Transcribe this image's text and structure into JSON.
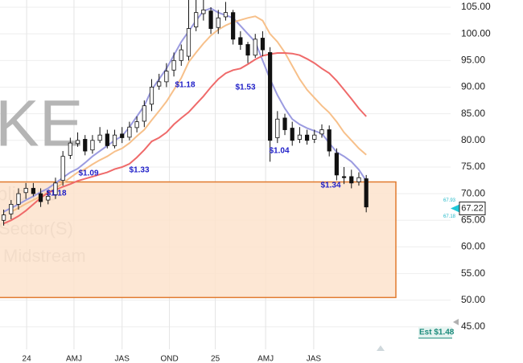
{
  "chart_data": {
    "type": "candlestick",
    "watermark": [
      "KE",
      "blic Inc",
      "Sector(S)",
      "Midstream"
    ],
    "open": [
      65,
      66.2,
      68,
      70.2,
      71,
      70,
      68.8,
      69.8,
      72.5,
      77.2,
      79.4,
      80.2,
      78.2,
      80,
      81.2,
      79,
      81.2,
      80.6,
      82.4,
      83.6,
      86.8,
      90.2,
      91,
      93.2,
      95,
      95.8,
      101.3,
      103.8,
      104.3,
      101.2,
      103.2,
      104,
      99.3,
      98,
      96,
      99.2,
      96.5,
      80.5,
      84.2,
      82.3,
      80.2,
      81,
      80.2,
      81.2,
      82,
      77.6,
      73.2,
      73.2,
      72.2,
      72.8
    ],
    "high": [
      67,
      68.8,
      71,
      72,
      72,
      71,
      70.5,
      73,
      78,
      80.5,
      81.5,
      81,
      81,
      82.5,
      82,
      82,
      82.5,
      83.5,
      84.5,
      87.5,
      91.5,
      92.5,
      94.5,
      96.5,
      98,
      108,
      106.5,
      106.5,
      105,
      104.5,
      106,
      104.5,
      100.5,
      98.5,
      100,
      100.5,
      97.5,
      85.5,
      85,
      83.5,
      82.5,
      82,
      82,
      83,
      82.8,
      78.5,
      75,
      74.5,
      74,
      73.5
    ],
    "low": [
      64,
      65.2,
      67,
      69,
      69.5,
      67.5,
      68,
      69,
      71.5,
      76.5,
      78.8,
      77.2,
      77.5,
      79.5,
      78.5,
      78.5,
      79.5,
      80,
      81.5,
      82.5,
      85.5,
      89.5,
      90,
      92,
      94,
      95,
      100.5,
      102.5,
      100,
      100,
      102.5,
      98,
      97,
      94.5,
      95.5,
      95.8,
      76,
      79.5,
      81,
      79,
      79.5,
      79.2,
      79.5,
      80.5,
      77,
      72.5,
      71.8,
      71,
      71.5,
      66.5
    ],
    "close": [
      66,
      68,
      70,
      71,
      70,
      68.5,
      69.5,
      72,
      77,
      79.5,
      80,
      78,
      80,
      81,
      79,
      81,
      80.5,
      82.5,
      83.5,
      86.5,
      90,
      91,
      93,
      95,
      97,
      101,
      104,
      104.5,
      101,
      103,
      104,
      99,
      98,
      96,
      99,
      97,
      80,
      84,
      82,
      80,
      81,
      80,
      81,
      82,
      78,
      73.5,
      73,
      72,
      73,
      67.5
    ],
    "moving_averages": [
      {
        "color": "#9b9be0",
        "values": [
          66.6,
          67.3,
          68,
          68.8,
          69.5,
          70.3,
          71,
          72,
          73,
          74,
          74.7,
          75.8,
          77,
          78,
          79,
          80,
          80.8,
          82.5,
          84.5,
          86.5,
          89.5,
          91.5,
          93.5,
          96,
          98.5,
          100.5,
          102.5,
          104.3,
          104.8,
          104,
          103.5,
          103,
          101.5,
          100,
          98.5,
          95,
          91.5,
          88.5,
          86,
          84,
          83,
          82.3,
          81.8,
          81.3,
          79.5,
          77.8,
          77,
          76,
          74.5,
          72.4
        ]
      },
      {
        "color": "#f7c08a",
        "values": [
          null,
          66.6,
          67.3,
          68.1,
          68.8,
          69.5,
          70.2,
          71,
          72,
          73,
          74,
          74.6,
          75.5,
          76.3,
          77,
          77.9,
          78.5,
          79.5,
          80.8,
          82,
          83.8,
          85.5,
          87.3,
          89.5,
          91.7,
          94.7,
          96.5,
          98.2,
          99.7,
          100.8,
          101.6,
          102.2,
          102.6,
          103,
          103.3,
          102.5,
          100,
          98.5,
          96.5,
          94,
          91.5,
          89.5,
          88,
          86.5,
          85.2,
          83.5,
          81.5,
          80,
          78.5,
          77.3
        ]
      },
      {
        "color": "#ef6a6a",
        "values": [
          64.4,
          65,
          65.8,
          66.8,
          68,
          69.2,
          70.2,
          70.7,
          71.3,
          71.8,
          72.4,
          72.8,
          73.2,
          73.6,
          74,
          74.6,
          75,
          75.6,
          76.8,
          78.2,
          79.8,
          80.5,
          81.5,
          83,
          84.2,
          85.3,
          86.8,
          88.3,
          90,
          91.5,
          92.6,
          93.2,
          93.5,
          94.3,
          95.2,
          95.9,
          96.2,
          96.4,
          96.4,
          96.3,
          96,
          95.3,
          94.5,
          93.5,
          92.6,
          91.2,
          89.5,
          87.8,
          86,
          84.5
        ]
      }
    ],
    "zone": {
      "low": 50.5,
      "high": 72.2,
      "color": "#fde3cc",
      "border": "#e07a2e"
    },
    "dividends": [
      "$1.18",
      "$1.09",
      "$1.33",
      "$1.18",
      "$1.53",
      "$1.04",
      "$1.34"
    ],
    "estimate": "Est $1.48",
    "last_price": 67.22,
    "bid": 67.93,
    "ask": 67.18,
    "xlim": [
      -0.5,
      60.4
    ],
    "xticks": [
      {
        "value": 3.1,
        "label": "24"
      },
      {
        "value": 9.5,
        "label": "AMJ"
      },
      {
        "value": 16.0,
        "label": "JAS"
      },
      {
        "value": 22.4,
        "label": "OND"
      },
      {
        "value": 28.6,
        "label": "25"
      },
      {
        "value": 35.4,
        "label": "AMJ"
      },
      {
        "value": 41.9,
        "label": "JAS"
      }
    ],
    "ylim": [
      38.2,
      106.36
    ],
    "yticks": [
      {
        "value": 45,
        "label": "45.00"
      },
      {
        "value": 50,
        "label": "50.00"
      },
      {
        "value": 55,
        "label": "55.00"
      },
      {
        "value": 60,
        "label": "60.00"
      },
      {
        "value": 65,
        "label": "65.00"
      },
      {
        "value": 70,
        "label": "70.00"
      },
      {
        "value": 75,
        "label": "75.00"
      },
      {
        "value": 80,
        "label": "80.00"
      },
      {
        "value": 85,
        "label": "85.00"
      },
      {
        "value": 90,
        "label": "90.00"
      },
      {
        "value": 95,
        "label": "95.00"
      },
      {
        "value": 100,
        "label": "100.00"
      },
      {
        "value": 105,
        "label": "105.00"
      }
    ],
    "grid": true
  }
}
